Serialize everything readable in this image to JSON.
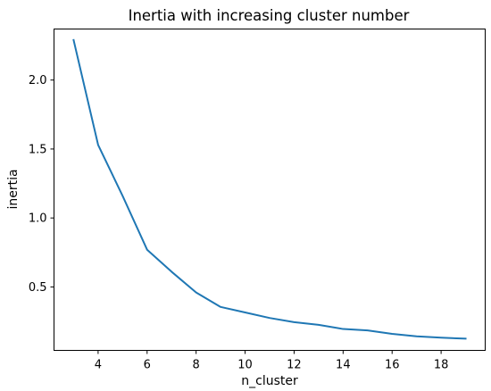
{
  "chart_data": {
    "type": "line",
    "title": "Inertia with increasing cluster number",
    "xlabel": "n_cluster",
    "ylabel": "inertia",
    "xlim": [
      2.2,
      19.8
    ],
    "ylim": [
      0.04,
      2.37
    ],
    "x_ticks": [
      4,
      6,
      8,
      10,
      12,
      14,
      16,
      18
    ],
    "y_ticks": [
      0.5,
      1.0,
      1.5,
      2.0
    ],
    "x_tick_labels": [
      "4",
      "6",
      "8",
      "10",
      "12",
      "14",
      "16",
      "18"
    ],
    "y_tick_labels": [
      "0.5",
      "1.0",
      "1.5",
      "2.0"
    ],
    "grid": false,
    "series": [
      {
        "color": "#1f77b4",
        "x": [
          3,
          4,
          5,
          6,
          7,
          8,
          9,
          10,
          11,
          12,
          13,
          14,
          15,
          16,
          17,
          18,
          19
        ],
        "y": [
          2.29,
          1.53,
          1.16,
          0.77,
          0.61,
          0.46,
          0.355,
          0.315,
          0.275,
          0.245,
          0.225,
          0.195,
          0.185,
          0.16,
          0.142,
          0.132,
          0.125
        ]
      }
    ]
  }
}
